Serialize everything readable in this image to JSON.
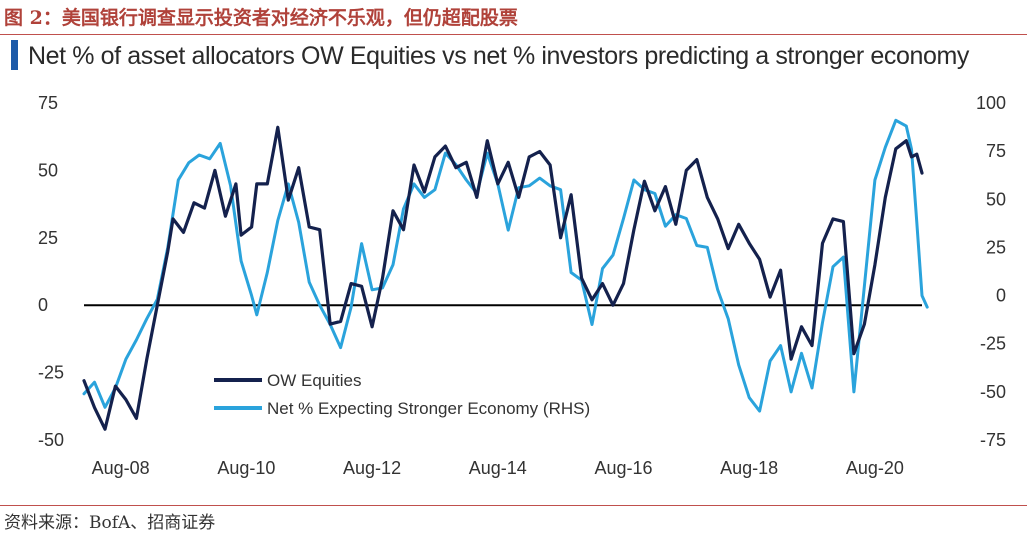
{
  "figure_title": "图 2：美国银行调查显示投资者对经济不乐观，但仍超配股票",
  "source": "资料来源：BofA、招商证券",
  "colors": {
    "title_red": "#b0423a",
    "rule": "#c0504d",
    "accent": "#1d5aa8",
    "series_dark": "#14214d",
    "series_light": "#2aa3dc"
  },
  "chart_data": {
    "type": "line",
    "title": "Net % of asset allocators OW Equities vs net % investors predicting a stronger economy",
    "x_tick_labels": [
      "Aug-08",
      "Aug-10",
      "Aug-12",
      "Aug-14",
      "Aug-16",
      "Aug-18",
      "Aug-20"
    ],
    "x_range": [
      "2008-01",
      "2021-05"
    ],
    "y_left": {
      "ticks": [
        "75",
        "50",
        "25",
        "0",
        "-25",
        "-50"
      ],
      "range": [
        -50,
        75
      ]
    },
    "y_right": {
      "ticks": [
        "100",
        "75",
        "50",
        "25",
        "0",
        "-25",
        "-50",
        "-75"
      ],
      "range": [
        -75,
        100
      ]
    },
    "legend": {
      "position": "bottom-left",
      "entries": [
        "OW Equities",
        "Net % Expecting Stronger Economy (RHS)"
      ]
    },
    "series": [
      {
        "name": "OW Equities",
        "axis": "left",
        "color": "#14214d",
        "points": [
          [
            "2008-01",
            -28
          ],
          [
            "2008-03",
            -38
          ],
          [
            "2008-05",
            -46
          ],
          [
            "2008-07",
            -30
          ],
          [
            "2008-09",
            -35
          ],
          [
            "2008-11",
            -42
          ],
          [
            "2009-01",
            -20
          ],
          [
            "2009-03",
            0
          ],
          [
            "2009-05",
            20
          ],
          [
            "2009-06",
            32
          ],
          [
            "2009-08",
            27
          ],
          [
            "2009-10",
            38
          ],
          [
            "2009-12",
            36
          ],
          [
            "2010-02",
            50
          ],
          [
            "2010-04",
            33
          ],
          [
            "2010-06",
            45
          ],
          [
            "2010-07",
            26
          ],
          [
            "2010-09",
            29
          ],
          [
            "2010-10",
            45
          ],
          [
            "2010-12",
            45
          ],
          [
            "2011-02",
            66
          ],
          [
            "2011-04",
            39
          ],
          [
            "2011-06",
            51
          ],
          [
            "2011-08",
            29
          ],
          [
            "2011-10",
            28
          ],
          [
            "2011-12",
            -7
          ],
          [
            "2012-02",
            -6
          ],
          [
            "2012-04",
            8
          ],
          [
            "2012-06",
            7
          ],
          [
            "2012-08",
            -8
          ],
          [
            "2012-10",
            10
          ],
          [
            "2012-12",
            35
          ],
          [
            "2013-02",
            28
          ],
          [
            "2013-04",
            52
          ],
          [
            "2013-06",
            42
          ],
          [
            "2013-08",
            55
          ],
          [
            "2013-10",
            59
          ],
          [
            "2013-12",
            51
          ],
          [
            "2014-02",
            53
          ],
          [
            "2014-04",
            40
          ],
          [
            "2014-06",
            61
          ],
          [
            "2014-08",
            45
          ],
          [
            "2014-10",
            53
          ],
          [
            "2014-12",
            40
          ],
          [
            "2015-02",
            55
          ],
          [
            "2015-04",
            57
          ],
          [
            "2015-06",
            52
          ],
          [
            "2015-08",
            25
          ],
          [
            "2015-10",
            41
          ],
          [
            "2015-12",
            10
          ],
          [
            "2016-02",
            2
          ],
          [
            "2016-04",
            8
          ],
          [
            "2016-06",
            0
          ],
          [
            "2016-08",
            8
          ],
          [
            "2016-10",
            28
          ],
          [
            "2016-12",
            46
          ],
          [
            "2017-02",
            35
          ],
          [
            "2017-04",
            44
          ],
          [
            "2017-06",
            30
          ],
          [
            "2017-08",
            50
          ],
          [
            "2017-10",
            54
          ],
          [
            "2017-12",
            40
          ],
          [
            "2018-02",
            32
          ],
          [
            "2018-04",
            21
          ],
          [
            "2018-06",
            30
          ],
          [
            "2018-08",
            23
          ],
          [
            "2018-10",
            17
          ],
          [
            "2018-12",
            3
          ],
          [
            "2019-02",
            13
          ],
          [
            "2019-04",
            -20
          ],
          [
            "2019-06",
            -8
          ],
          [
            "2019-08",
            -15
          ],
          [
            "2019-10",
            23
          ],
          [
            "2019-12",
            32
          ],
          [
            "2020-02",
            31
          ],
          [
            "2020-04",
            -18
          ],
          [
            "2020-06",
            -7
          ],
          [
            "2020-08",
            15
          ],
          [
            "2020-10",
            40
          ],
          [
            "2020-12",
            58
          ],
          [
            "2021-02",
            61
          ],
          [
            "2021-03",
            55
          ],
          [
            "2021-04",
            56
          ],
          [
            "2021-05",
            49
          ]
        ]
      },
      {
        "name": "Net % Expecting Stronger Economy (RHS)",
        "axis": "right",
        "color": "#2aa3dc",
        "points": [
          [
            "2008-01",
            -51
          ],
          [
            "2008-03",
            -45
          ],
          [
            "2008-05",
            -58
          ],
          [
            "2008-07",
            -48
          ],
          [
            "2008-09",
            -33
          ],
          [
            "2008-11",
            -23
          ],
          [
            "2009-01",
            -12
          ],
          [
            "2009-03",
            -2
          ],
          [
            "2009-05",
            25
          ],
          [
            "2009-07",
            60
          ],
          [
            "2009-09",
            69
          ],
          [
            "2009-11",
            73
          ],
          [
            "2010-01",
            71
          ],
          [
            "2010-03",
            79
          ],
          [
            "2010-05",
            57
          ],
          [
            "2010-07",
            18
          ],
          [
            "2010-09",
            0
          ],
          [
            "2010-10",
            -10
          ],
          [
            "2010-12",
            12
          ],
          [
            "2011-02",
            39
          ],
          [
            "2011-04",
            58
          ],
          [
            "2011-06",
            38
          ],
          [
            "2011-08",
            7
          ],
          [
            "2011-10",
            -5
          ],
          [
            "2011-12",
            -15
          ],
          [
            "2012-02",
            -27
          ],
          [
            "2012-04",
            -6
          ],
          [
            "2012-06",
            27
          ],
          [
            "2012-08",
            3
          ],
          [
            "2012-10",
            4
          ],
          [
            "2012-12",
            16
          ],
          [
            "2013-02",
            45
          ],
          [
            "2013-04",
            58
          ],
          [
            "2013-06",
            51
          ],
          [
            "2013-08",
            55
          ],
          [
            "2013-10",
            74
          ],
          [
            "2013-12",
            68
          ],
          [
            "2014-02",
            60
          ],
          [
            "2014-04",
            53
          ],
          [
            "2014-06",
            74
          ],
          [
            "2014-08",
            58
          ],
          [
            "2014-10",
            34
          ],
          [
            "2014-12",
            56
          ],
          [
            "2015-02",
            57
          ],
          [
            "2015-04",
            61
          ],
          [
            "2015-06",
            57
          ],
          [
            "2015-08",
            55
          ],
          [
            "2015-10",
            12
          ],
          [
            "2015-12",
            8
          ],
          [
            "2016-02",
            -15
          ],
          [
            "2016-04",
            14
          ],
          [
            "2016-06",
            21
          ],
          [
            "2016-08",
            40
          ],
          [
            "2016-10",
            60
          ],
          [
            "2016-12",
            55
          ],
          [
            "2017-02",
            53
          ],
          [
            "2017-04",
            36
          ],
          [
            "2017-06",
            42
          ],
          [
            "2017-08",
            40
          ],
          [
            "2017-10",
            26
          ],
          [
            "2017-12",
            25
          ],
          [
            "2018-02",
            3
          ],
          [
            "2018-04",
            -12
          ],
          [
            "2018-06",
            -36
          ],
          [
            "2018-08",
            -53
          ],
          [
            "2018-10",
            -60
          ],
          [
            "2018-12",
            -34
          ],
          [
            "2019-02",
            -26
          ],
          [
            "2019-04",
            -50
          ],
          [
            "2019-06",
            -30
          ],
          [
            "2019-08",
            -48
          ],
          [
            "2019-10",
            -14
          ],
          [
            "2019-12",
            15
          ],
          [
            "2020-02",
            20
          ],
          [
            "2020-04",
            -50
          ],
          [
            "2020-06",
            5
          ],
          [
            "2020-08",
            60
          ],
          [
            "2020-10",
            77
          ],
          [
            "2020-12",
            91
          ],
          [
            "2021-02",
            88
          ],
          [
            "2021-03",
            76
          ],
          [
            "2021-04",
            38
          ],
          [
            "2021-05",
            0
          ],
          [
            "2021-06",
            -6
          ]
        ]
      }
    ]
  }
}
